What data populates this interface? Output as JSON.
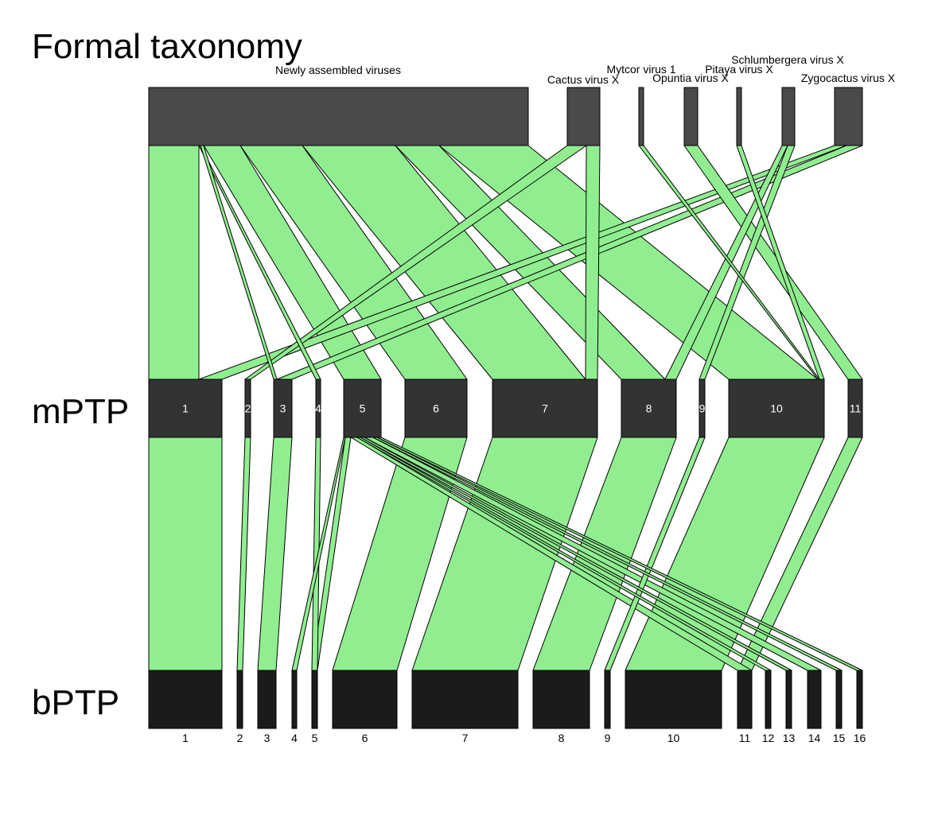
{
  "titles": {
    "top": "Formal taxonomy",
    "middle": "mPTP",
    "bottom": "bPTP"
  },
  "colors": {
    "top_bar": "#4a4a4a",
    "mid_bar": "#333333",
    "bot_bar": "#1b1b1b",
    "ribbon": "#90ee90",
    "outline": "#000000",
    "mid_label": "#ffffff",
    "bot_label": "#000000"
  },
  "top_nodes": [
    {
      "id": "newly",
      "label": "Newly assembled viruses"
    },
    {
      "id": "cactus",
      "label": "Cactus virus X"
    },
    {
      "id": "mytcor",
      "label": "Mytcor virus 1"
    },
    {
      "id": "opuntia",
      "label": "Opuntia virus X"
    },
    {
      "id": "pitaya",
      "label": "Pitaya virus X"
    },
    {
      "id": "schlum",
      "label": "Schlumbergera virus X"
    },
    {
      "id": "zygo",
      "label": "Zygocactus virus X"
    }
  ],
  "mid_nodes": [
    {
      "id": "m1",
      "label": "1"
    },
    {
      "id": "m2",
      "label": "2"
    },
    {
      "id": "m3",
      "label": "3"
    },
    {
      "id": "m4",
      "label": "4"
    },
    {
      "id": "m5",
      "label": "5"
    },
    {
      "id": "m6",
      "label": "6"
    },
    {
      "id": "m7",
      "label": "7"
    },
    {
      "id": "m8",
      "label": "8"
    },
    {
      "id": "m9",
      "label": "9"
    },
    {
      "id": "m10",
      "label": "10"
    },
    {
      "id": "m11",
      "label": "11"
    }
  ],
  "bot_nodes": [
    {
      "id": "b1",
      "label": "1"
    },
    {
      "id": "b2",
      "label": "2"
    },
    {
      "id": "b3",
      "label": "3"
    },
    {
      "id": "b4",
      "label": "4"
    },
    {
      "id": "b5",
      "label": "5"
    },
    {
      "id": "b6",
      "label": "6"
    },
    {
      "id": "b7",
      "label": "7"
    },
    {
      "id": "b8",
      "label": "8"
    },
    {
      "id": "b9",
      "label": "9"
    },
    {
      "id": "b10",
      "label": "10"
    },
    {
      "id": "b11",
      "label": "11"
    },
    {
      "id": "b12",
      "label": "12"
    },
    {
      "id": "b13",
      "label": "13"
    },
    {
      "id": "b14",
      "label": "14"
    },
    {
      "id": "b15",
      "label": "15"
    },
    {
      "id": "b16",
      "label": "16"
    }
  ]
}
